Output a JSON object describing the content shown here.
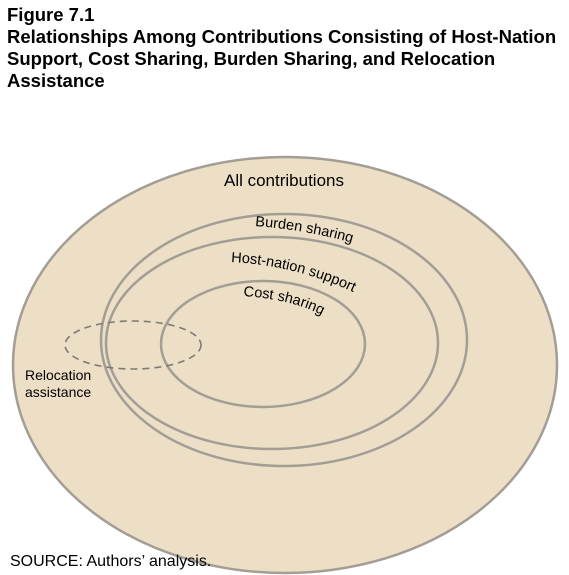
{
  "figure": {
    "number": "Figure 7.1",
    "title": "Relationships Among Contributions Consisting of Host-Nation Support, Cost Sharing, Burden Sharing, and Relocation Assistance"
  },
  "diagram": {
    "colors": {
      "fill": "#ecdfc6",
      "stroke": "#a39d95",
      "text": "#000000"
    },
    "labels": {
      "all_contributions": "All contributions",
      "burden_sharing": "Burden sharing",
      "host_nation_support": "Host-nation support",
      "cost_sharing": "Cost sharing",
      "relocation_line1": "Relocation",
      "relocation_line2": "assistance"
    },
    "relocation_style": "dashed"
  },
  "source": "SOURCE: Authors’ analysis."
}
